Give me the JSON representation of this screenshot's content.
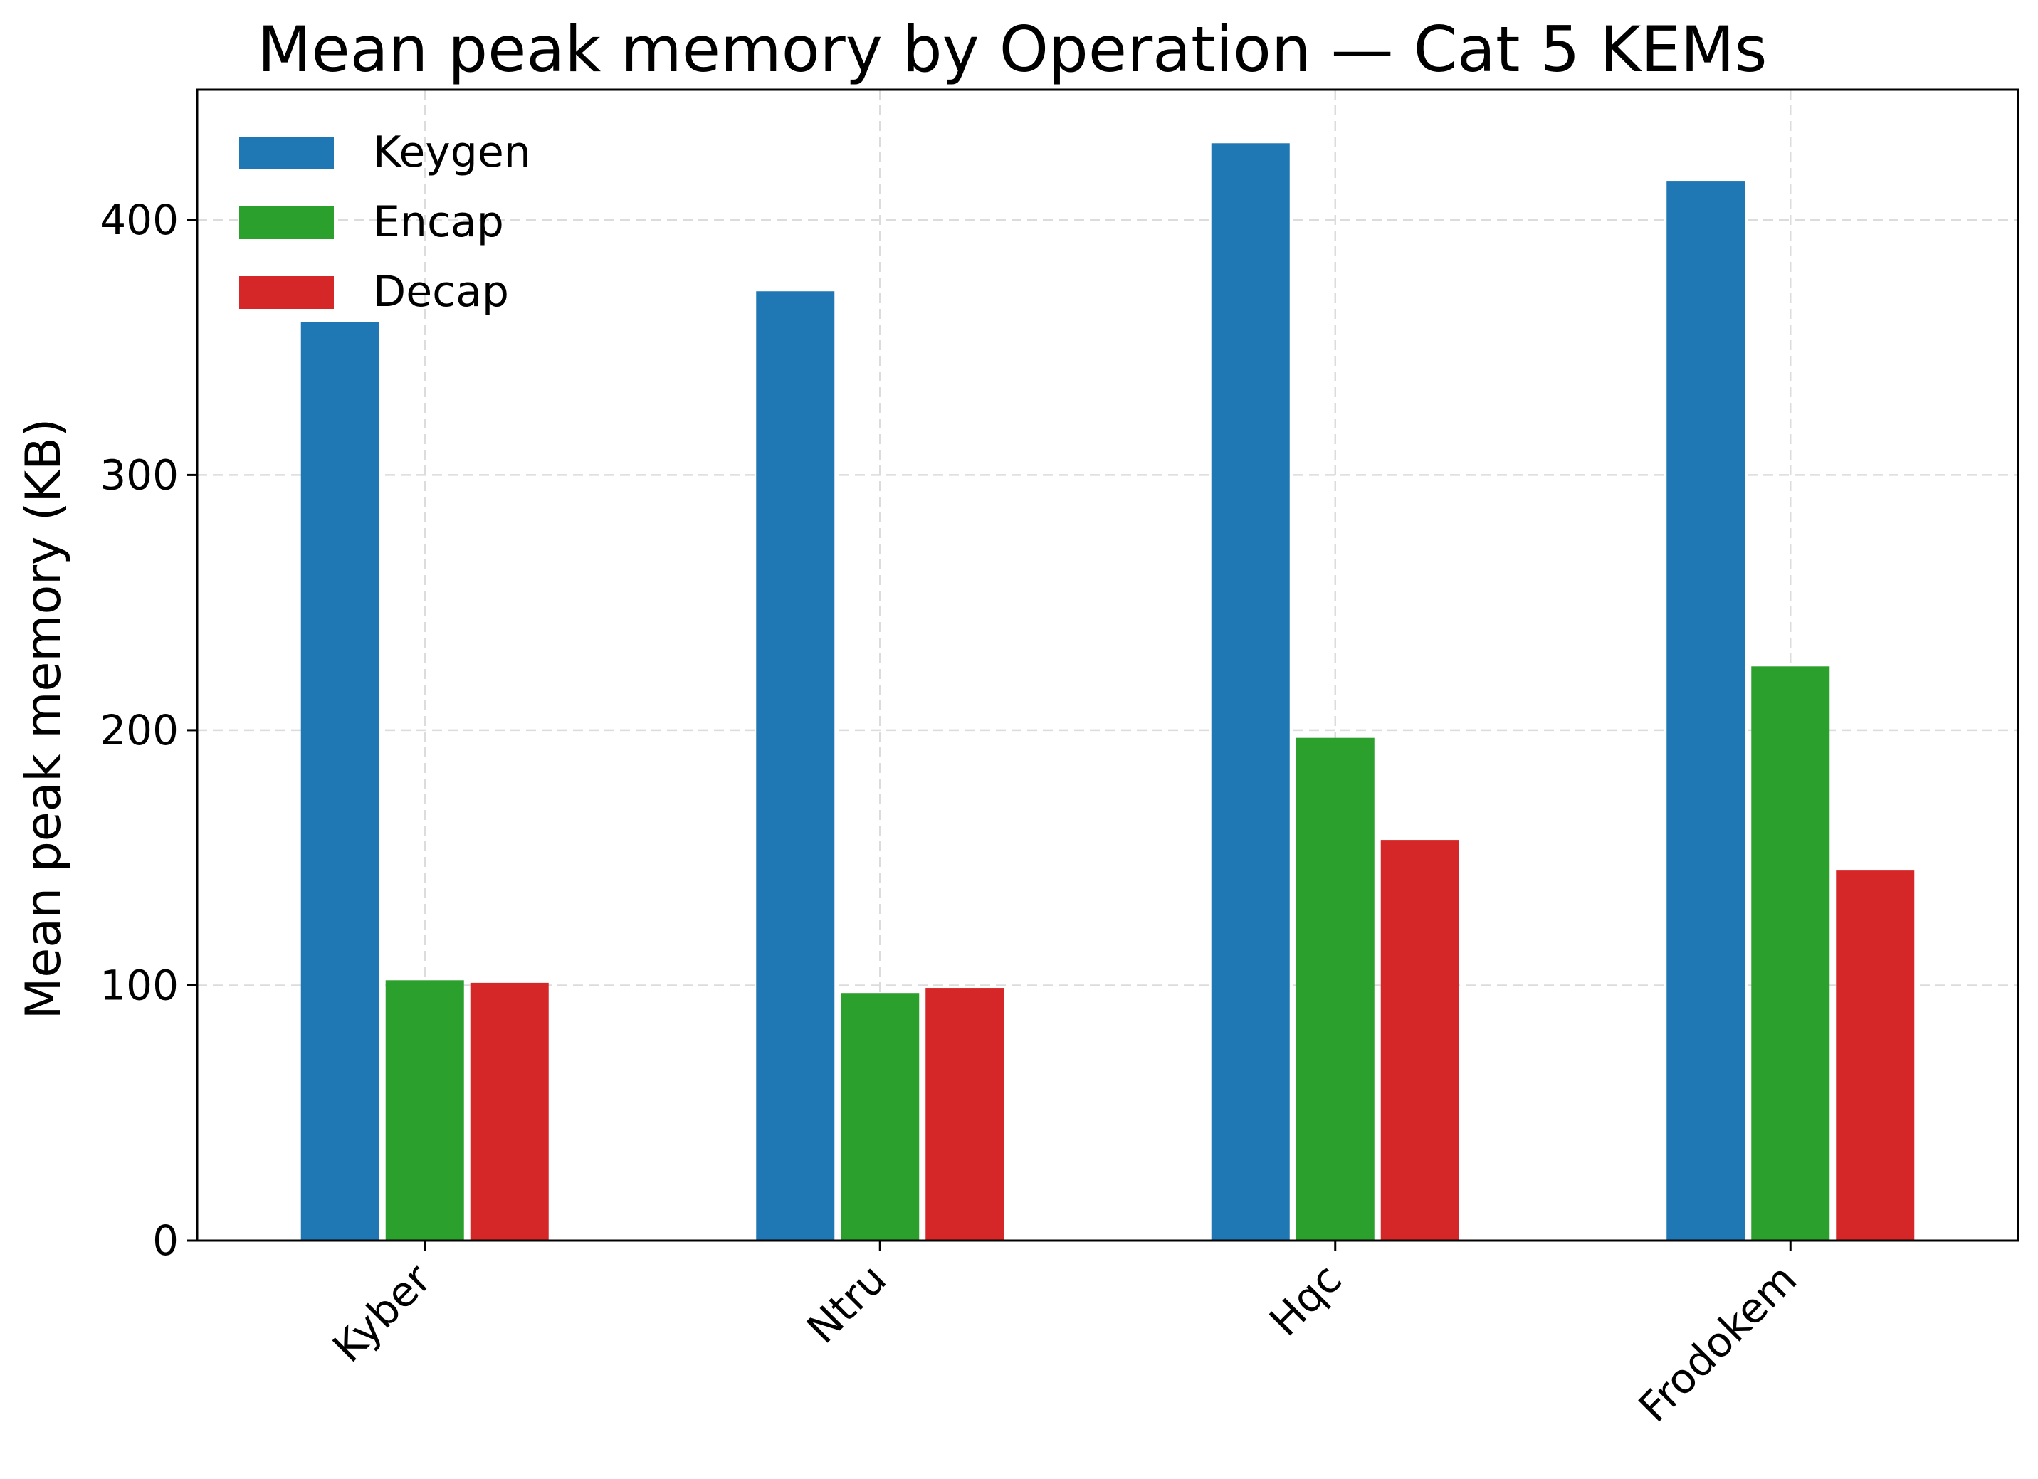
{
  "chart_data": {
    "type": "bar",
    "title": "Mean peak memory by Operation — Cat 5 KEMs",
    "xlabel": "",
    "ylabel": "Mean peak memory (KB)",
    "categories": [
      "Kyber",
      "Ntru",
      "Hqc",
      "Frodokem"
    ],
    "series": [
      {
        "name": "Keygen",
        "color": "#1f77b4",
        "values": [
          360,
          372,
          430,
          415
        ]
      },
      {
        "name": "Encap",
        "color": "#2ca02c",
        "values": [
          102,
          97,
          197,
          225
        ]
      },
      {
        "name": "Decap",
        "color": "#d62728",
        "values": [
          101,
          99,
          157,
          145
        ]
      }
    ],
    "ylim": [
      0,
      451
    ],
    "yticks": [
      0,
      100,
      200,
      300,
      400
    ],
    "grid": true,
    "legend_position": "top-left",
    "xtick_rotation": 45
  }
}
